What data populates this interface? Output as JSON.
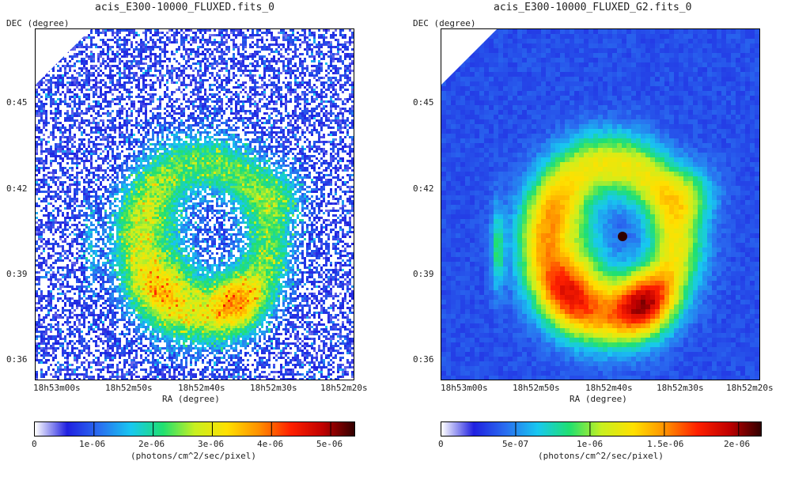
{
  "panels": [
    {
      "title": "acis_E300-10000_FLUXED.fits_0",
      "dec_label": "DEC (degree)",
      "ra_label": "RA (degree)",
      "y_ticks": [
        "0:45",
        "0:42",
        "0:39",
        "0:36"
      ],
      "x_ticks": [
        "18h53m00s",
        "18h52m50s",
        "18h52m40s",
        "18h52m30s",
        "18h52m20s"
      ],
      "colorbar_ticks": [
        "0",
        "1e-06",
        "2e-06",
        "3e-06",
        "4e-06",
        "5e-06"
      ],
      "colorbar_label": "(photons/cm^2/sec/pixel)",
      "image_style": "raw-noisy"
    },
    {
      "title": "acis_E300-10000_FLUXED_G2.fits_0",
      "dec_label": "DEC (degree)",
      "ra_label": "RA (degree)",
      "y_ticks": [
        "0:45",
        "0:42",
        "0:39",
        "0:36"
      ],
      "x_ticks": [
        "18h53m00s",
        "18h52m50s",
        "18h52m40s",
        "18h52m30s",
        "18h52m20s"
      ],
      "colorbar_ticks": [
        "0",
        "5e-07",
        "1e-06",
        "1.5e-06",
        "2e-06"
      ],
      "colorbar_label": "(photons/cm^2/sec/pixel)",
      "image_style": "smoothed"
    }
  ],
  "colormap": [
    "#ffffff",
    "#2020e0",
    "#2a6ef0",
    "#18c8f0",
    "#20e070",
    "#c8f020",
    "#ffe000",
    "#ff9000",
    "#ff2000",
    "#c00000",
    "#300000"
  ]
}
